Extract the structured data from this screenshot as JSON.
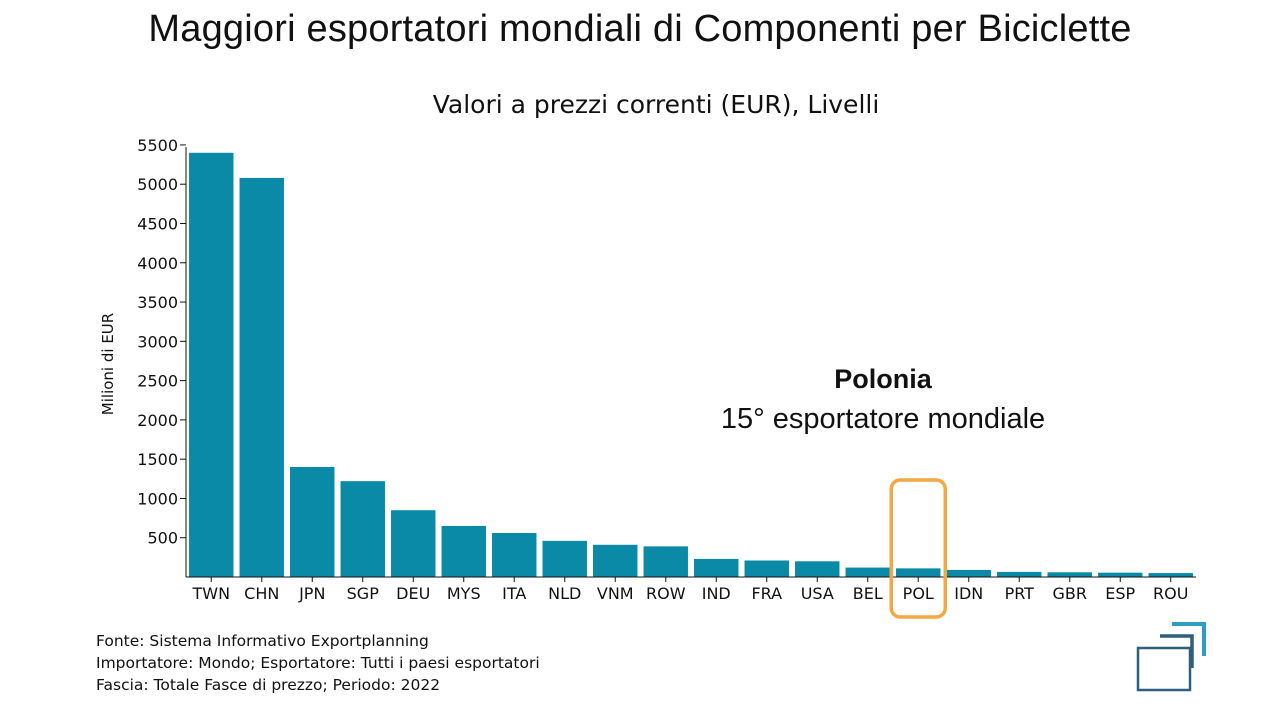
{
  "header": {
    "title": "Maggiori esportatori mondiali di Componenti per Biciclette"
  },
  "annotation": {
    "title": "Polonia",
    "subtitle": "15° esportatore mondiale"
  },
  "source": {
    "lines": [
      "Fonte: Sistema Informativo Exportplanning",
      "Importatore: Mondo; Esportatore: Tutti i paesi esportatori",
      "Fascia: Totale Fasce di prezzo; Periodo: 2022"
    ]
  },
  "logo": {
    "icon": "exportplanning-logo-icon"
  },
  "colors": {
    "bar": "#0a8aa6",
    "highlight": "#f5a742",
    "text": "#111111",
    "logo_dark": "#2f5f7a",
    "logo_light": "#2a9fbe"
  },
  "chart_data": {
    "type": "bar",
    "title": "Valori a prezzi correnti (EUR), Livelli",
    "xlabel": "",
    "ylabel": "Milioni di EUR",
    "ylim": [
      0,
      5550
    ],
    "yticks": [
      500,
      1000,
      1500,
      2000,
      2500,
      3000,
      3500,
      4000,
      4500,
      5000,
      5500
    ],
    "categories": [
      "TWN",
      "CHN",
      "JPN",
      "SGP",
      "DEU",
      "MYS",
      "ITA",
      "NLD",
      "VNM",
      "ROW",
      "IND",
      "FRA",
      "USA",
      "BEL",
      "POL",
      "IDN",
      "PRT",
      "GBR",
      "ESP",
      "ROU"
    ],
    "values": [
      5400,
      5080,
      1400,
      1220,
      850,
      650,
      560,
      460,
      410,
      390,
      230,
      210,
      200,
      120,
      110,
      90,
      65,
      60,
      55,
      50
    ],
    "highlight": "POL",
    "grid": false,
    "legend": "none"
  }
}
